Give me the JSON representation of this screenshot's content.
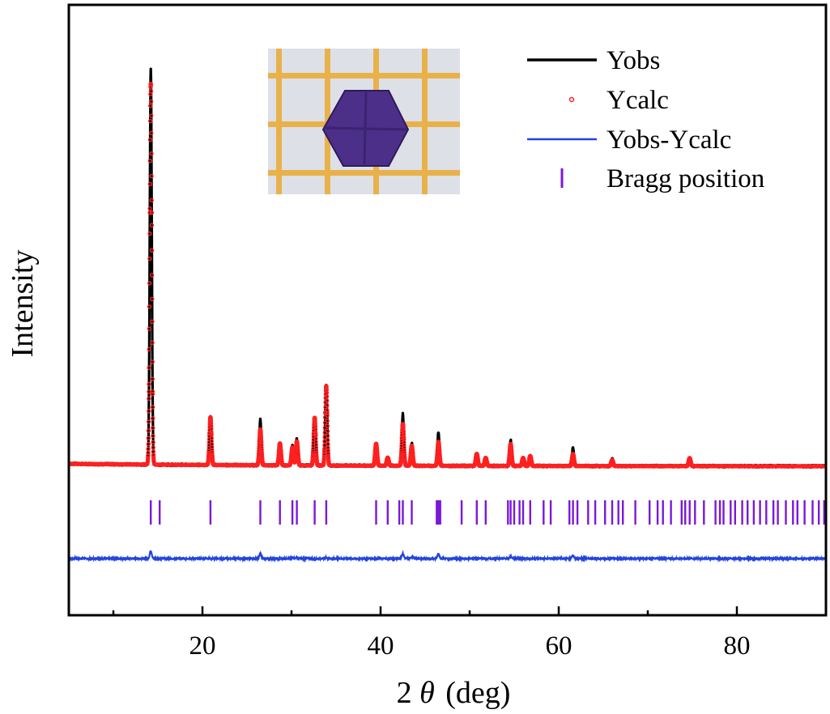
{
  "chart_data": {
    "type": "line",
    "xlabel_prefix": "2",
    "xlabel_symbol": "θ",
    "xlabel_unit": "(deg)",
    "ylabel": "Intensity",
    "xlim": [
      5,
      90
    ],
    "xticks_major": [
      20,
      40,
      60,
      80
    ],
    "xticks_minor": [
      10,
      30,
      50,
      70,
      90
    ],
    "grid": false,
    "legend_position": "top-right",
    "legend": [
      {
        "name": "Yobs",
        "marker": "line",
        "color": "#000000"
      },
      {
        "name": "Ycalc",
        "marker": "circle",
        "color": "#ff2020"
      },
      {
        "name": "Yobs-Ycalc",
        "marker": "line",
        "color": "#2244dd"
      },
      {
        "name": "Bragg position",
        "marker": "vbar",
        "color": "#7b18d8"
      }
    ],
    "inset": {
      "content": "photo of hexagonal dark-purple crystal on orange grid paper"
    },
    "peaks": [
      {
        "x": 14.2,
        "obs": 1.0,
        "calc": 0.96
      },
      {
        "x": 20.9,
        "obs": 0.12,
        "calc": 0.12
      },
      {
        "x": 26.5,
        "obs": 0.114,
        "calc": 0.09
      },
      {
        "x": 28.7,
        "obs": 0.055,
        "calc": 0.055
      },
      {
        "x": 30.1,
        "obs": 0.05,
        "calc": 0.045
      },
      {
        "x": 30.6,
        "obs": 0.067,
        "calc": 0.06
      },
      {
        "x": 32.6,
        "obs": 0.115,
        "calc": 0.12
      },
      {
        "x": 33.9,
        "obs": 0.205,
        "calc": 0.2
      },
      {
        "x": 39.5,
        "obs": 0.052,
        "calc": 0.055
      },
      {
        "x": 40.8,
        "obs": 0.02,
        "calc": 0.02
      },
      {
        "x": 42.5,
        "obs": 0.13,
        "calc": 0.105
      },
      {
        "x": 43.5,
        "obs": 0.058,
        "calc": 0.05
      },
      {
        "x": 46.5,
        "obs": 0.085,
        "calc": 0.06
      },
      {
        "x": 50.8,
        "obs": 0.03,
        "calc": 0.03
      },
      {
        "x": 51.8,
        "obs": 0.02,
        "calc": 0.02
      },
      {
        "x": 54.6,
        "obs": 0.065,
        "calc": 0.055
      },
      {
        "x": 56.0,
        "obs": 0.02,
        "calc": 0.02
      },
      {
        "x": 56.8,
        "obs": 0.025,
        "calc": 0.025
      },
      {
        "x": 61.6,
        "obs": 0.046,
        "calc": 0.03
      },
      {
        "x": 66.0,
        "obs": 0.018,
        "calc": 0.015
      },
      {
        "x": 74.7,
        "obs": 0.02,
        "calc": 0.02
      }
    ],
    "bragg_positions": [
      14.2,
      15.2,
      20.9,
      26.5,
      28.7,
      30.1,
      30.6,
      32.6,
      33.9,
      39.5,
      40.8,
      42.1,
      42.5,
      43.5,
      46.3,
      46.5,
      46.7,
      49.1,
      50.8,
      51.8,
      54.3,
      54.6,
      55.0,
      55.6,
      56.0,
      56.8,
      58.3,
      59.1,
      61.2,
      61.6,
      62.1,
      63.3,
      64.1,
      65.2,
      66.0,
      66.7,
      67.2,
      68.6,
      70.2,
      71.1,
      71.7,
      72.6,
      73.8,
      74.2,
      74.7,
      75.3,
      76.3,
      77.6,
      78.1,
      78.5,
      79.3,
      79.8,
      80.6,
      81.2,
      81.9,
      82.6,
      83.3,
      84.1,
      84.6,
      85.5,
      86.3,
      86.8,
      87.6,
      88.5,
      89.2,
      89.8
    ]
  }
}
